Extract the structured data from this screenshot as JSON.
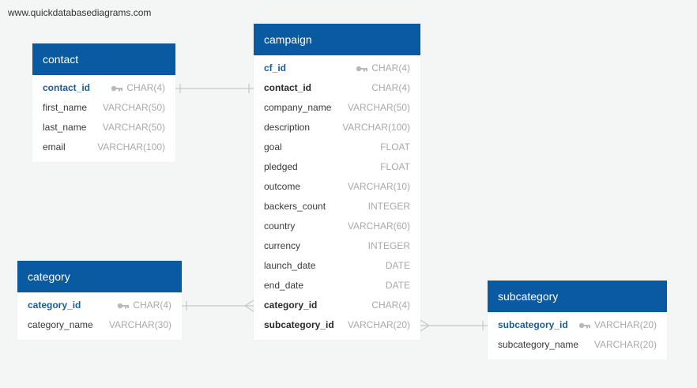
{
  "watermark": "www.quickdatabasediagrams.com",
  "colors": {
    "header": "#0a5aa2",
    "background": "#f4f5f5",
    "primary_key_text": "#1a5c96",
    "type_text": "#a9a9a9",
    "connector": "#c6c6c6"
  },
  "tables": {
    "contact": {
      "name": "contact",
      "fields": [
        {
          "name": "contact_id",
          "type": "CHAR(4)",
          "key": "pk"
        },
        {
          "name": "first_name",
          "type": "VARCHAR(50)",
          "key": ""
        },
        {
          "name": "last_name",
          "type": "VARCHAR(50)",
          "key": ""
        },
        {
          "name": "email",
          "type": "VARCHAR(100)",
          "key": ""
        }
      ]
    },
    "campaign": {
      "name": "campaign",
      "fields": [
        {
          "name": "cf_id",
          "type": "CHAR(4)",
          "key": "pk"
        },
        {
          "name": "contact_id",
          "type": "CHAR(4)",
          "key": "fk"
        },
        {
          "name": "company_name",
          "type": "VARCHAR(50)",
          "key": ""
        },
        {
          "name": "description",
          "type": "VARCHAR(100)",
          "key": ""
        },
        {
          "name": "goal",
          "type": "FLOAT",
          "key": ""
        },
        {
          "name": "pledged",
          "type": "FLOAT",
          "key": ""
        },
        {
          "name": "outcome",
          "type": "VARCHAR(10)",
          "key": ""
        },
        {
          "name": "backers_count",
          "type": "INTEGER",
          "key": ""
        },
        {
          "name": "country",
          "type": "VARCHAR(60)",
          "key": ""
        },
        {
          "name": "currency",
          "type": "INTEGER",
          "key": ""
        },
        {
          "name": "launch_date",
          "type": "DATE",
          "key": ""
        },
        {
          "name": "end_date",
          "type": "DATE",
          "key": ""
        },
        {
          "name": "category_id",
          "type": "CHAR(4)",
          "key": "fk"
        },
        {
          "name": "subcategory_id",
          "type": "VARCHAR(20)",
          "key": "fk"
        }
      ]
    },
    "category": {
      "name": "category",
      "fields": [
        {
          "name": "category_id",
          "type": "CHAR(4)",
          "key": "pk"
        },
        {
          "name": "category_name",
          "type": "VARCHAR(30)",
          "key": ""
        }
      ]
    },
    "subcategory": {
      "name": "subcategory",
      "fields": [
        {
          "name": "subcategory_id",
          "type": "VARCHAR(20)",
          "key": "pk"
        },
        {
          "name": "subcategory_name",
          "type": "VARCHAR(20)",
          "key": ""
        }
      ]
    }
  }
}
